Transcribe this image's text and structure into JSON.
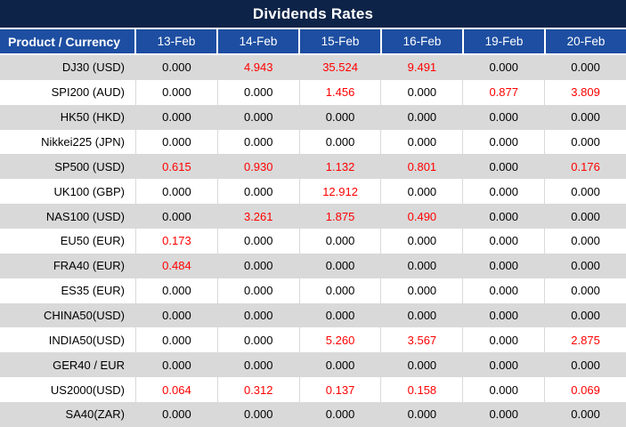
{
  "title": "Dividends Rates",
  "colors": {
    "title_bar_bg": "#0e2348",
    "header_bg": "#1d4ea1",
    "header_text": "#ffffff",
    "row_alt_bg": "#d9d9d9",
    "row_bg": "#ffffff",
    "value_zero": "#000000",
    "value_nonzero": "#ff0000"
  },
  "chart_data": {
    "type": "table",
    "title": "Dividends Rates",
    "corner_header": "Product / Currency",
    "columns": [
      "13-Feb",
      "14-Feb",
      "15-Feb",
      "16-Feb",
      "19-Feb",
      "20-Feb"
    ],
    "rows": [
      {
        "product": "DJ30 (USD)",
        "values": [
          "0.000",
          "4.943",
          "35.524",
          "9.491",
          "0.000",
          "0.000"
        ]
      },
      {
        "product": "SPI200 (AUD)",
        "values": [
          "0.000",
          "0.000",
          "1.456",
          "0.000",
          "0.877",
          "3.809"
        ]
      },
      {
        "product": "HK50 (HKD)",
        "values": [
          "0.000",
          "0.000",
          "0.000",
          "0.000",
          "0.000",
          "0.000"
        ]
      },
      {
        "product": "Nikkei225 (JPN)",
        "values": [
          "0.000",
          "0.000",
          "0.000",
          "0.000",
          "0.000",
          "0.000"
        ]
      },
      {
        "product": "SP500 (USD)",
        "values": [
          "0.615",
          "0.930",
          "1.132",
          "0.801",
          "0.000",
          "0.176"
        ]
      },
      {
        "product": "UK100 (GBP)",
        "values": [
          "0.000",
          "0.000",
          "12.912",
          "0.000",
          "0.000",
          "0.000"
        ]
      },
      {
        "product": "NAS100 (USD)",
        "values": [
          "0.000",
          "3.261",
          "1.875",
          "0.490",
          "0.000",
          "0.000"
        ]
      },
      {
        "product": "EU50 (EUR)",
        "values": [
          "0.173",
          "0.000",
          "0.000",
          "0.000",
          "0.000",
          "0.000"
        ]
      },
      {
        "product": "FRA40 (EUR)",
        "values": [
          "0.484",
          "0.000",
          "0.000",
          "0.000",
          "0.000",
          "0.000"
        ]
      },
      {
        "product": "ES35 (EUR)",
        "values": [
          "0.000",
          "0.000",
          "0.000",
          "0.000",
          "0.000",
          "0.000"
        ]
      },
      {
        "product": "CHINA50(USD)",
        "values": [
          "0.000",
          "0.000",
          "0.000",
          "0.000",
          "0.000",
          "0.000"
        ]
      },
      {
        "product": "INDIA50(USD)",
        "values": [
          "0.000",
          "0.000",
          "5.260",
          "3.567",
          "0.000",
          "2.875"
        ]
      },
      {
        "product": "GER40 / EUR",
        "values": [
          "0.000",
          "0.000",
          "0.000",
          "0.000",
          "0.000",
          "0.000"
        ]
      },
      {
        "product": "US2000(USD)",
        "values": [
          "0.064",
          "0.312",
          "0.137",
          "0.158",
          "0.000",
          "0.069"
        ]
      },
      {
        "product": "SA40(ZAR)",
        "values": [
          "0.000",
          "0.000",
          "0.000",
          "0.000",
          "0.000",
          "0.000"
        ]
      }
    ],
    "style_notes": "non-zero values rendered in red; rows alternate gray/white starting gray"
  }
}
